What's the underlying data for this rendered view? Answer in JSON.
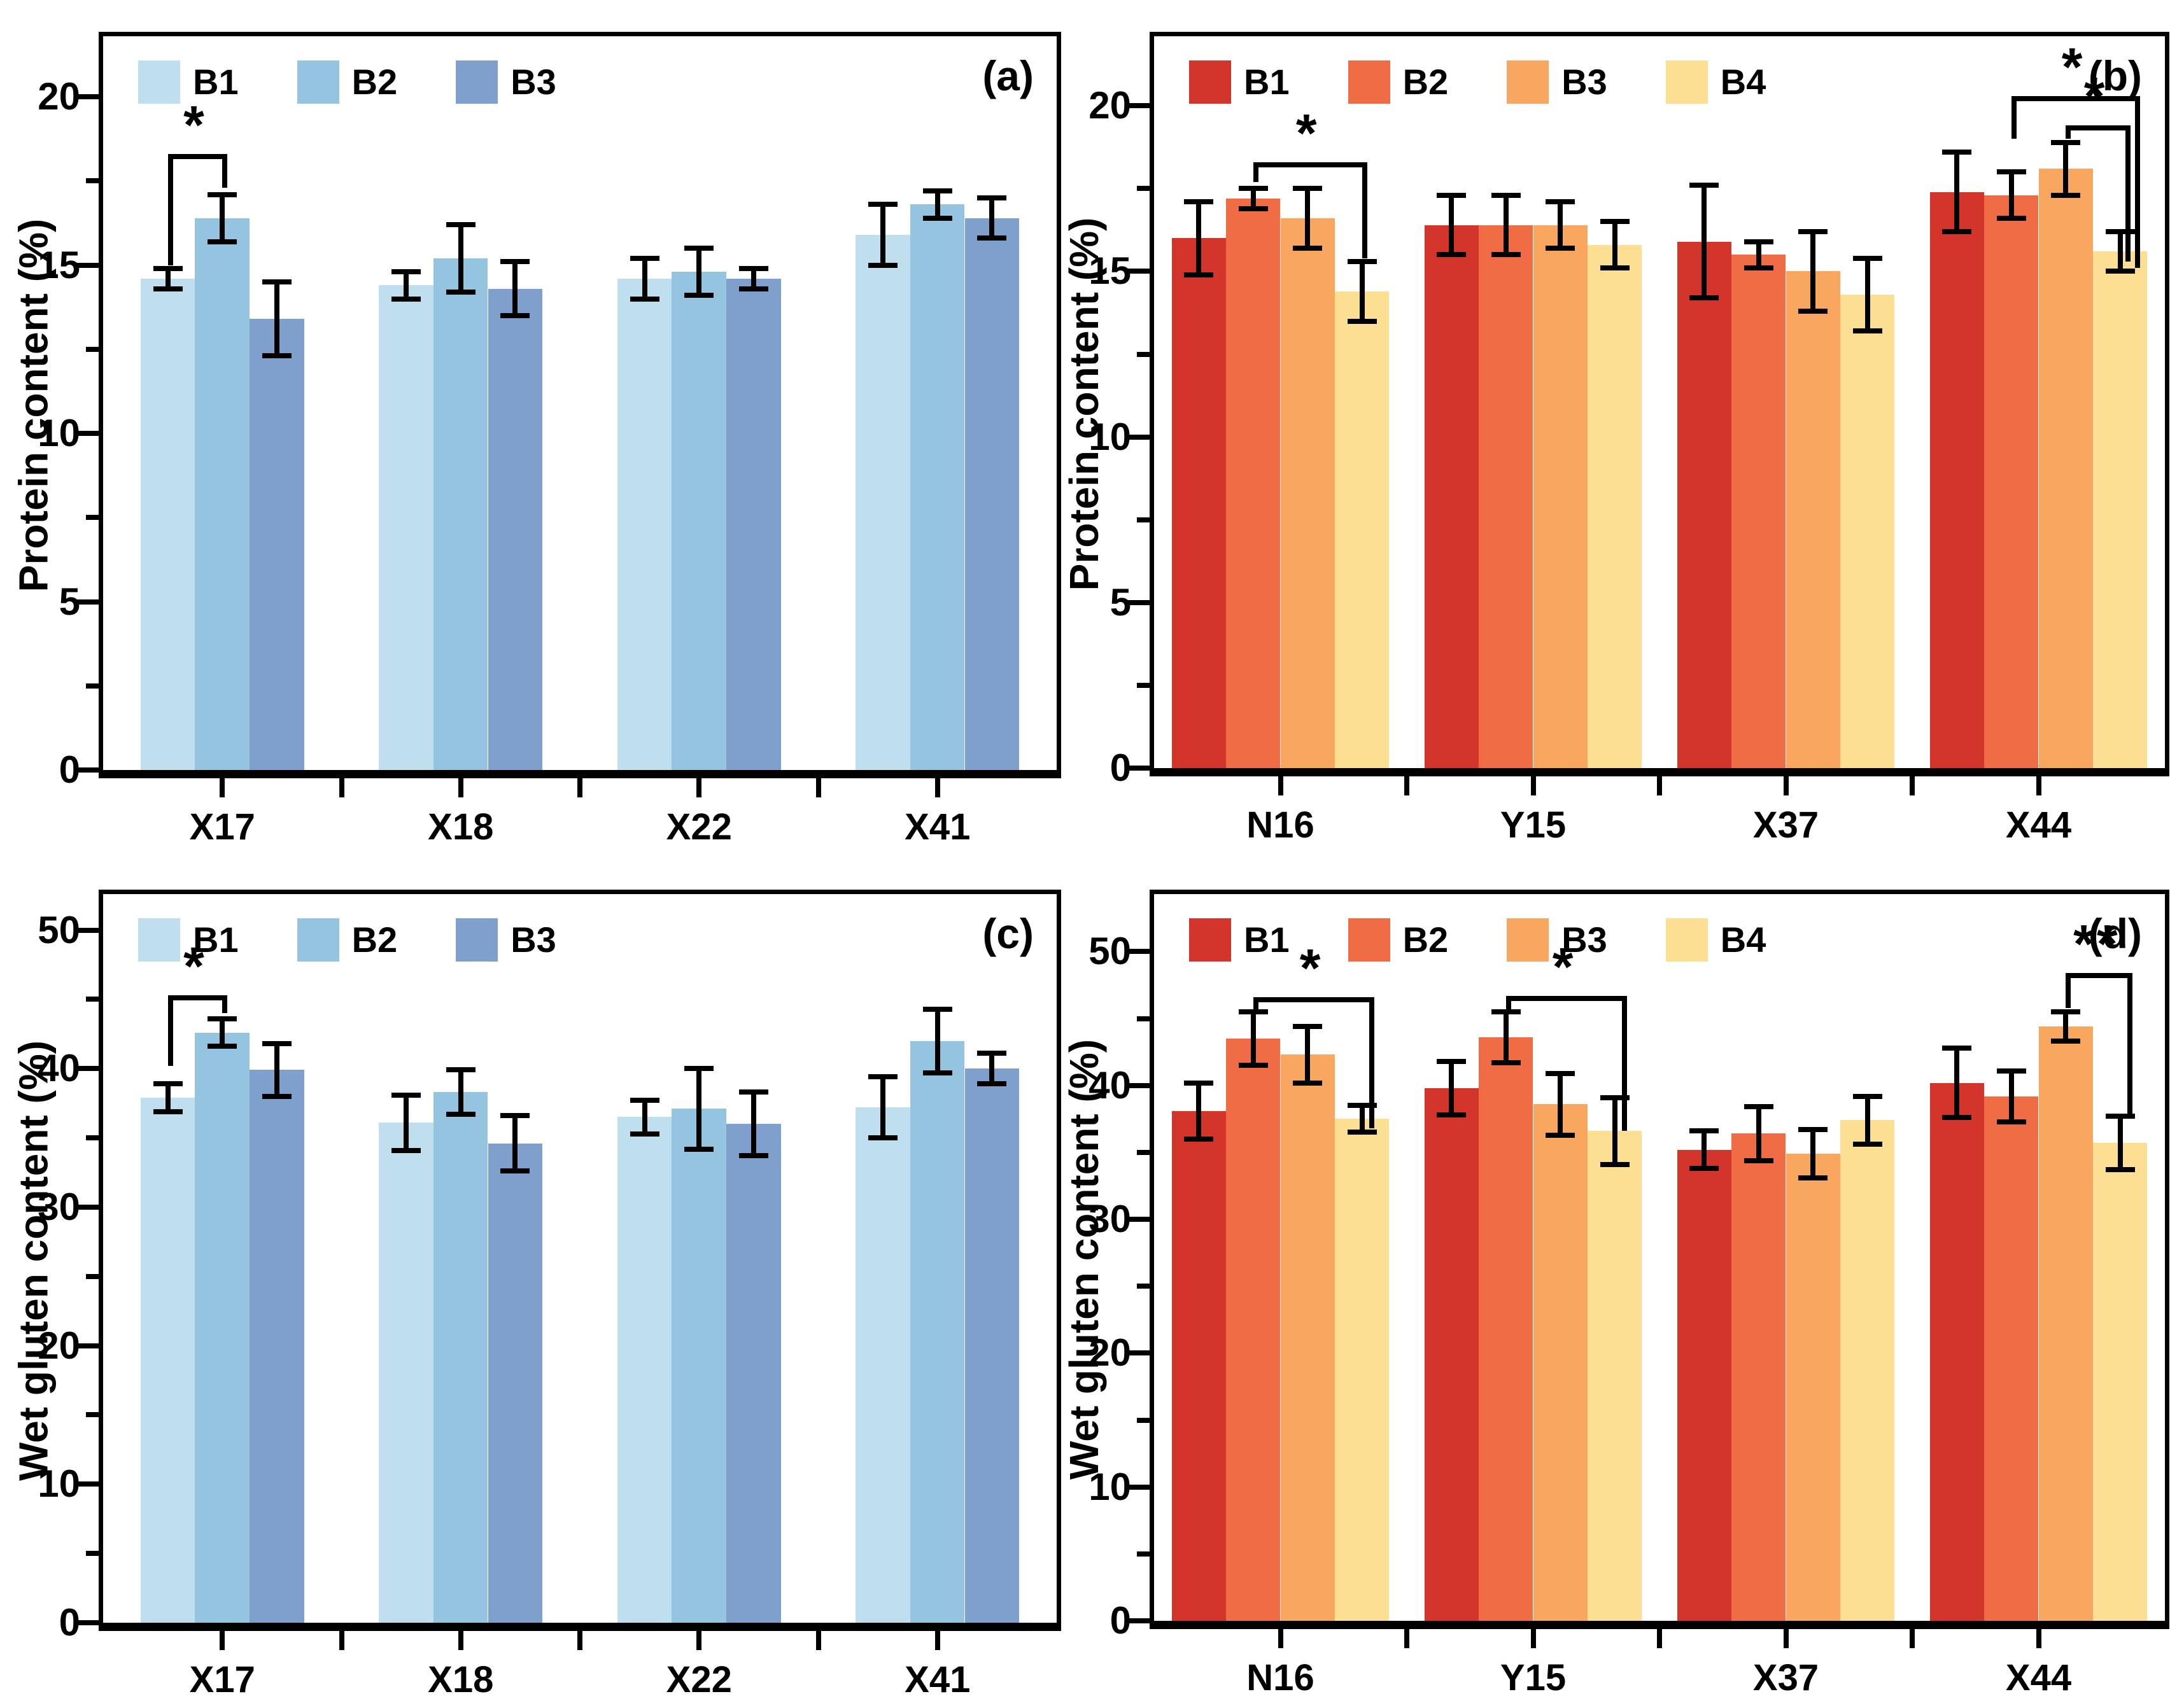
{
  "figure": {
    "background": "#ffffff",
    "axis_color": "#000000",
    "error_bar_color": "#000000"
  },
  "chart_data": [
    {
      "type": "bar",
      "letter": "(a)",
      "ylabel": "Protein content (%)",
      "xlabel": "",
      "categories": [
        "X17",
        "X18",
        "X22",
        "X41"
      ],
      "ylim": [
        0,
        22
      ],
      "yticks": [
        0,
        5,
        10,
        15,
        20
      ],
      "yminor": 2.5,
      "grid": false,
      "legend_position": "top-left-inside",
      "series": [
        {
          "name": "B1",
          "color": "#bfdeee",
          "values": [
            14.6,
            14.4,
            14.6,
            15.9
          ],
          "errors": [
            0.3,
            0.4,
            0.6,
            0.9
          ]
        },
        {
          "name": "B2",
          "color": "#94c4df",
          "values": [
            16.4,
            15.2,
            14.8,
            16.8
          ],
          "errors": [
            0.7,
            1.0,
            0.7,
            0.4
          ]
        },
        {
          "name": "B3",
          "color": "#7f9fcd",
          "values": [
            13.4,
            14.3,
            14.6,
            16.4
          ],
          "errors": [
            1.1,
            0.8,
            0.3,
            0.6
          ]
        }
      ],
      "significance": [
        {
          "group": 0,
          "bar1": 0,
          "bar2": 1,
          "y": 18.3,
          "drop1": 15.0,
          "drop2": 17.3,
          "label": "*"
        }
      ]
    },
    {
      "type": "bar",
      "letter": "(b)",
      "ylabel": "Protein content (%)",
      "xlabel": "",
      "categories": [
        "N16",
        "Y15",
        "X37",
        "X44"
      ],
      "ylim": [
        0,
        22
      ],
      "yticks": [
        0,
        5,
        10,
        15,
        20
      ],
      "yminor": 2.5,
      "grid": false,
      "legend_position": "top-left-inside",
      "series": [
        {
          "name": "B1",
          "color": "#d4352a",
          "values": [
            16.0,
            16.4,
            15.9,
            17.4
          ],
          "errors": [
            1.1,
            0.9,
            1.7,
            1.2
          ]
        },
        {
          "name": "B2",
          "color": "#f06c45",
          "values": [
            17.2,
            16.4,
            15.5,
            17.3
          ],
          "errors": [
            0.3,
            0.9,
            0.4,
            0.7
          ]
        },
        {
          "name": "B3",
          "color": "#f9a75e",
          "values": [
            16.6,
            16.4,
            15.0,
            18.1
          ],
          "errors": [
            0.9,
            0.7,
            1.2,
            0.8
          ]
        },
        {
          "name": "B4",
          "color": "#fcdf92",
          "values": [
            14.4,
            15.8,
            14.3,
            15.6
          ],
          "errors": [
            0.9,
            0.7,
            1.1,
            0.6
          ]
        }
      ],
      "significance": [
        {
          "group": 0,
          "bar1": 1,
          "bar2": 3,
          "y": 18.3,
          "drop1": 17.7,
          "drop2": 15.4,
          "label": "*"
        },
        {
          "group": 3,
          "bar1": 1,
          "bar2": 3,
          "y": 20.3,
          "drop1": 19.0,
          "drop2": 15.1,
          "label": "*",
          "xf2": 0.78
        },
        {
          "group": 3,
          "bar1": 2,
          "bar2": 3,
          "y": 19.4,
          "drop1": 19.0,
          "drop2": 15.3,
          "label": "*",
          "xf2": 0.6
        }
      ]
    },
    {
      "type": "bar",
      "letter": "(c)",
      "ylabel": "Wet gluten content (%)",
      "xlabel": "",
      "categories": [
        "X17",
        "X18",
        "X22",
        "X41"
      ],
      "ylim": [
        0,
        52
      ],
      "yticks": [
        0,
        10,
        20,
        30,
        40,
        50
      ],
      "yminor": 5,
      "grid": false,
      "legend_position": "top-left-inside",
      "series": [
        {
          "name": "B1",
          "color": "#bfdeee",
          "values": [
            37.9,
            36.1,
            36.5,
            37.2
          ],
          "errors": [
            1.0,
            2.0,
            1.2,
            2.2
          ]
        },
        {
          "name": "B2",
          "color": "#94c4df",
          "values": [
            42.6,
            38.3,
            37.1,
            42.0
          ],
          "errors": [
            1.0,
            1.6,
            2.9,
            2.3
          ]
        },
        {
          "name": "B3",
          "color": "#7f9fcd",
          "values": [
            39.9,
            34.6,
            36.0,
            40.0
          ],
          "errors": [
            1.9,
            2.0,
            2.3,
            1.1
          ]
        }
      ],
      "significance": [
        {
          "group": 0,
          "bar1": 0,
          "bar2": 1,
          "y": 45.3,
          "drop1": 40.2,
          "drop2": 44.0,
          "label": "*"
        }
      ]
    },
    {
      "type": "bar",
      "letter": "(d)",
      "ylabel": "Wet gluten content (%)",
      "xlabel": "",
      "categories": [
        "N16",
        "Y15",
        "X37",
        "X44"
      ],
      "ylim": [
        0,
        52
      ],
      "yticks": [
        0,
        10,
        20,
        30,
        40,
        50
      ],
      "yminor": 5,
      "grid": false,
      "legend_position": "top-left-inside",
      "series": [
        {
          "name": "B1",
          "color": "#d4352a",
          "values": [
            38.1,
            39.8,
            35.2,
            40.2
          ],
          "errors": [
            2.1,
            2.0,
            1.4,
            2.6
          ]
        },
        {
          "name": "B2",
          "color": "#f06c45",
          "values": [
            43.5,
            43.6,
            36.4,
            39.2
          ],
          "errors": [
            2.0,
            1.9,
            2.0,
            1.9
          ]
        },
        {
          "name": "B3",
          "color": "#f9a75e",
          "values": [
            42.3,
            38.6,
            34.9,
            44.4
          ],
          "errors": [
            2.1,
            2.3,
            1.8,
            1.1
          ]
        },
        {
          "name": "B4",
          "color": "#fcdf92",
          "values": [
            37.5,
            36.6,
            37.4,
            35.7
          ],
          "errors": [
            1.0,
            2.5,
            1.8,
            2.0
          ]
        }
      ],
      "significance": [
        {
          "group": 0,
          "bar1": 1,
          "bar2": 3,
          "y": 46.6,
          "drop1": 45.4,
          "drop2": 36.8,
          "label": "*",
          "xf2": 0.64
        },
        {
          "group": 1,
          "bar1": 1,
          "bar2": 3,
          "y": 46.7,
          "drop1": 45.4,
          "drop2": 36.6,
          "label": "*",
          "xf2": 0.64
        },
        {
          "group": 3,
          "bar1": 2,
          "bar2": 3,
          "y": 48.4,
          "drop1": 45.8,
          "drop2": 37.8,
          "label": "**",
          "xf2": 0.64
        }
      ]
    }
  ]
}
